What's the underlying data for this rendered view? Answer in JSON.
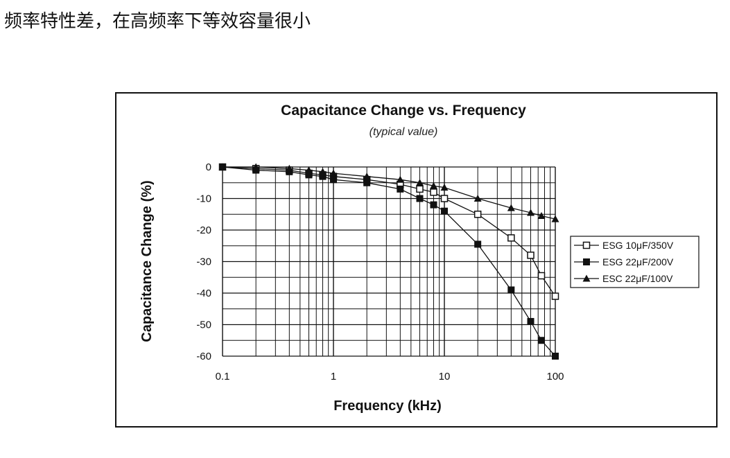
{
  "page": {
    "heading": "频率特性差，在高频率下等效容量很小"
  },
  "chart_data": {
    "type": "line",
    "title": "Capacitance Change vs. Frequency",
    "subtitle": "(typical value)",
    "xlabel": "Frequency (kHz)",
    "ylabel": "Capacitance Change (%)",
    "xscale": "log",
    "xlim": [
      0.1,
      100
    ],
    "ylim": [
      -60,
      0
    ],
    "xticks": [
      "0.1",
      "1",
      "10",
      "100"
    ],
    "yticks": [
      "0",
      "-10",
      "-20",
      "-30",
      "-40",
      "-50",
      "-60"
    ],
    "grid": true,
    "legend_position": "right",
    "series": [
      {
        "name": "ESG 10μF/350V",
        "marker": "open-square",
        "points": [
          [
            0.1,
            0
          ],
          [
            0.2,
            -0.5
          ],
          [
            0.4,
            -1
          ],
          [
            0.6,
            -2
          ],
          [
            0.8,
            -2.5
          ],
          [
            1,
            -3
          ],
          [
            2,
            -4
          ],
          [
            4,
            -5.5
          ],
          [
            6,
            -7
          ],
          [
            8,
            -8
          ],
          [
            10,
            -10
          ],
          [
            20,
            -15
          ],
          [
            40,
            -22.5
          ],
          [
            60,
            -28
          ],
          [
            75,
            -34.5
          ],
          [
            100,
            -41
          ]
        ]
      },
      {
        "name": "ESG 22μF/200V",
        "marker": "filled-square",
        "points": [
          [
            0.1,
            0
          ],
          [
            0.2,
            -1
          ],
          [
            0.4,
            -1.5
          ],
          [
            0.6,
            -2.5
          ],
          [
            0.8,
            -3
          ],
          [
            1,
            -4
          ],
          [
            2,
            -5
          ],
          [
            4,
            -7
          ],
          [
            6,
            -10
          ],
          [
            8,
            -12
          ],
          [
            10,
            -14
          ],
          [
            20,
            -24.5
          ],
          [
            40,
            -39
          ],
          [
            60,
            -49
          ],
          [
            75,
            -55
          ],
          [
            100,
            -60
          ]
        ]
      },
      {
        "name": "ESC 22μF/100V",
        "marker": "filled-triangle",
        "points": [
          [
            0.1,
            0
          ],
          [
            0.2,
            0
          ],
          [
            0.4,
            -0.5
          ],
          [
            0.6,
            -1
          ],
          [
            0.8,
            -1.5
          ],
          [
            1,
            -2
          ],
          [
            2,
            -3
          ],
          [
            4,
            -4
          ],
          [
            6,
            -5
          ],
          [
            8,
            -6
          ],
          [
            10,
            -6.5
          ],
          [
            20,
            -10
          ],
          [
            40,
            -13
          ],
          [
            60,
            -14.5
          ],
          [
            75,
            -15.5
          ],
          [
            100,
            -16.5
          ]
        ]
      }
    ]
  }
}
